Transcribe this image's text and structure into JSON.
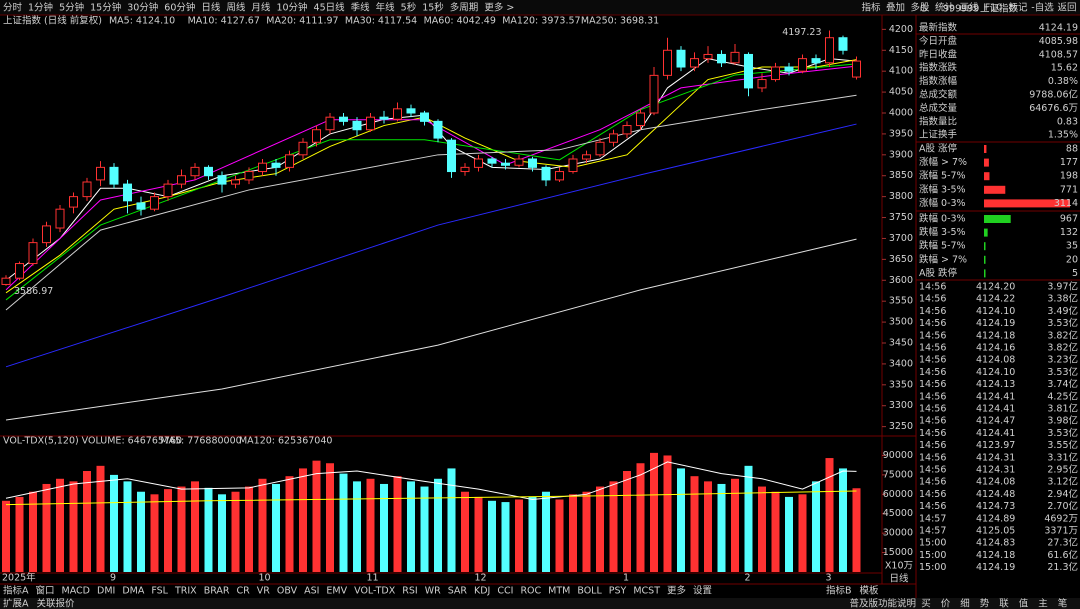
{
  "toolbar": {
    "periods": [
      "分时",
      "1分钟",
      "5分钟",
      "15分钟",
      "30分钟",
      "60分钟",
      "日线",
      "周线",
      "月线",
      "10分钟",
      "45日线",
      "季线",
      "年线",
      "5秒",
      "15秒",
      "多周期",
      "更多 >"
    ],
    "active": 6,
    "buttons": [
      "指标",
      "叠加",
      "多股",
      "统计",
      "画线",
      "F10",
      "标记",
      "-自选",
      "返回"
    ]
  },
  "chart_header": {
    "title": "上证指数 (日线 前复权)",
    "ma_legend": [
      {
        "label": "MA5: 4124.10",
        "color": "#ffffff"
      },
      {
        "label": "MA10: 4127.67",
        "color": "#ffff00"
      },
      {
        "label": "MA20: 4111.97",
        "color": "#ff00ff"
      },
      {
        "label": "MA30: 4117.54",
        "color": "#00e600"
      },
      {
        "label": "MA60: 4042.49",
        "color": "#d0d0d0"
      },
      {
        "label": "MA120: 3973.57",
        "color": "#3030ff"
      },
      {
        "label": "MA250: 3698.31",
        "color": "#e0e0e0"
      }
    ]
  },
  "price_chart": {
    "type": "candlestick",
    "ylim": [
      3230,
      4220
    ],
    "yticks": [
      3250,
      3300,
      3350,
      3400,
      3450,
      3500,
      3550,
      3600,
      3650,
      3700,
      3750,
      3800,
      3850,
      3900,
      3950,
      4000,
      4050,
      4100,
      4150,
      4200
    ],
    "up_color": "#ff3232",
    "down_color": "#54ffff",
    "candles": [
      [
        3590,
        3612,
        3586.97,
        3605
      ],
      [
        3605,
        3645,
        3600,
        3640
      ],
      [
        3640,
        3700,
        3635,
        3690
      ],
      [
        3690,
        3740,
        3680,
        3730
      ],
      [
        3725,
        3780,
        3715,
        3770
      ],
      [
        3775,
        3810,
        3760,
        3800
      ],
      [
        3800,
        3845,
        3790,
        3835
      ],
      [
        3840,
        3885,
        3825,
        3870
      ],
      [
        3870,
        3880,
        3820,
        3830
      ],
      [
        3830,
        3840,
        3760,
        3790
      ],
      [
        3785,
        3800,
        3755,
        3770
      ],
      [
        3770,
        3810,
        3765,
        3800
      ],
      [
        3800,
        3840,
        3790,
        3830
      ],
      [
        3830,
        3865,
        3820,
        3850
      ],
      [
        3850,
        3880,
        3840,
        3870
      ],
      [
        3870,
        3875,
        3840,
        3850
      ],
      [
        3850,
        3860,
        3810,
        3830
      ],
      [
        3830,
        3850,
        3820,
        3840
      ],
      [
        3840,
        3870,
        3830,
        3860
      ],
      [
        3860,
        3890,
        3850,
        3880
      ],
      [
        3880,
        3890,
        3850,
        3870
      ],
      [
        3870,
        3910,
        3860,
        3900
      ],
      [
        3900,
        3940,
        3890,
        3930
      ],
      [
        3930,
        3970,
        3920,
        3960
      ],
      [
        3960,
        4000,
        3950,
        3990
      ],
      [
        3990,
        4000,
        3970,
        3980
      ],
      [
        3980,
        3990,
        3945,
        3960
      ],
      [
        3960,
        4000,
        3955,
        3990
      ],
      [
        3990,
        4005,
        3975,
        3985
      ],
      [
        3985,
        4025,
        3980,
        4010
      ],
      [
        4010,
        4020,
        3990,
        4000
      ],
      [
        4000,
        4005,
        3970,
        3980
      ],
      [
        3980,
        3985,
        3930,
        3940
      ],
      [
        3935,
        3940,
        3845,
        3860
      ],
      [
        3860,
        3880,
        3850,
        3870
      ],
      [
        3870,
        3900,
        3860,
        3890
      ],
      [
        3890,
        3895,
        3870,
        3880
      ],
      [
        3880,
        3890,
        3865,
        3875
      ],
      [
        3875,
        3900,
        3870,
        3890
      ],
      [
        3890,
        3895,
        3860,
        3870
      ],
      [
        3870,
        3875,
        3825,
        3840
      ],
      [
        3840,
        3870,
        3835,
        3860
      ],
      [
        3860,
        3900,
        3855,
        3890
      ],
      [
        3890,
        3910,
        3880,
        3900
      ],
      [
        3900,
        3940,
        3895,
        3930
      ],
      [
        3930,
        3960,
        3920,
        3950
      ],
      [
        3950,
        3980,
        3940,
        3970
      ],
      [
        3970,
        4010,
        3960,
        4000
      ],
      [
        4000,
        4110,
        3995,
        4090
      ],
      [
        4090,
        4180,
        4080,
        4150
      ],
      [
        4150,
        4160,
        4100,
        4110
      ],
      [
        4110,
        4145,
        4100,
        4130
      ],
      [
        4130,
        4160,
        4120,
        4140
      ],
      [
        4140,
        4150,
        4110,
        4120
      ],
      [
        4120,
        4165,
        4115,
        4145
      ],
      [
        4140,
        4145,
        4040,
        4060
      ],
      [
        4060,
        4095,
        4050,
        4080
      ],
      [
        4080,
        4120,
        4075,
        4110
      ],
      [
        4110,
        4120,
        4090,
        4100
      ],
      [
        4100,
        4140,
        4095,
        4130
      ],
      [
        4130,
        4140,
        4105,
        4120
      ],
      [
        4120,
        4197.23,
        4110,
        4180
      ],
      [
        4180,
        4185,
        4140,
        4150
      ],
      [
        4085.98,
        4135,
        4080,
        4124.19
      ]
    ],
    "ma_lines": [
      {
        "color": "#ffffff",
        "x": [
          0,
          4,
          7,
          9,
          12,
          16,
          20,
          24,
          28,
          31,
          33,
          36,
          40,
          44,
          47,
          49,
          52,
          55,
          58,
          61,
          63
        ],
        "values": [
          3600,
          3700,
          3820,
          3820,
          3800,
          3850,
          3870,
          3950,
          3985,
          3995,
          3920,
          3870,
          3865,
          3890,
          3960,
          4060,
          4130,
          4110,
          4095,
          4130,
          4124.1
        ]
      },
      {
        "color": "#ffff00",
        "x": [
          0,
          4,
          8,
          12,
          16,
          20,
          24,
          28,
          31,
          34,
          38,
          42,
          46,
          49,
          52,
          56,
          60,
          63
        ],
        "values": [
          3570,
          3660,
          3770,
          3800,
          3835,
          3855,
          3920,
          3970,
          3990,
          3940,
          3885,
          3870,
          3900,
          3990,
          4080,
          4110,
          4110,
          4127.67
        ]
      },
      {
        "color": "#ff00ff",
        "x": [
          0,
          7,
          14,
          24,
          31,
          37,
          44,
          50,
          57,
          63
        ],
        "values": [
          3577,
          3792,
          3840,
          3984,
          3984,
          3876,
          3960,
          4060,
          4091,
          4111.97
        ]
      },
      {
        "color": "#00e600",
        "x": [
          0,
          7,
          14,
          24,
          31,
          41,
          47,
          54,
          63
        ],
        "values": [
          3553,
          3732,
          3816,
          3936,
          3936,
          3888,
          4008,
          4091,
          4117.54
        ]
      },
      {
        "color": "#d0d0d0",
        "x": [
          0,
          7,
          18,
          32,
          41,
          47,
          56,
          63
        ],
        "values": [
          3529,
          3720,
          3816,
          3900,
          3912,
          3960,
          4008,
          4042.49
        ]
      },
      {
        "color": "#2a2aff",
        "x": [
          0,
          16,
          32,
          47,
          63
        ],
        "values": [
          3393,
          3560,
          3732,
          3852,
          3973.57
        ]
      },
      {
        "color": "#e0e0e0",
        "x": [
          0,
          16,
          32,
          47,
          63
        ],
        "values": [
          3266,
          3340,
          3445,
          3577,
          3698.31
        ]
      }
    ],
    "dates": [
      "2025年",
      null,
      null,
      null,
      null,
      null,
      null,
      null,
      "9",
      null,
      null,
      null,
      null,
      null,
      null,
      null,
      null,
      null,
      null,
      "10",
      null,
      null,
      null,
      null,
      null,
      null,
      null,
      "11",
      null,
      null,
      null,
      null,
      null,
      null,
      null,
      "12",
      null,
      null,
      null,
      null,
      null,
      null,
      null,
      null,
      null,
      null,
      "1",
      null,
      null,
      null,
      null,
      null,
      null,
      null,
      null,
      "2",
      null,
      null,
      null,
      null,
      null,
      "3",
      null,
      null
    ]
  },
  "volume_chart": {
    "type": "bar",
    "legend": [
      {
        "label": "VOL-TDX(5,120)",
        "color": "#ffffff"
      },
      {
        "label": "VOLUME: 646765760",
        "color": "#ffffff"
      },
      {
        "label": "MA5: 776880000",
        "color": "#ffffff"
      },
      {
        "label": "MA120: 625367040",
        "color": "#ffff00"
      }
    ],
    "ylim": [
      0,
      95000
    ],
    "yticks": [
      15000,
      30000,
      45000,
      60000,
      75000,
      90000
    ],
    "unit_label": "X10万",
    "values": [
      55000,
      58000,
      62000,
      68000,
      72000,
      70000,
      78000,
      82000,
      75000,
      70000,
      62000,
      60000,
      64000,
      66000,
      70000,
      65000,
      60000,
      62000,
      66000,
      72000,
      68000,
      74000,
      80000,
      86000,
      84000,
      76000,
      70000,
      72000,
      68000,
      74000,
      70000,
      66000,
      72000,
      80000,
      62000,
      58000,
      55000,
      54000,
      56000,
      58000,
      62000,
      56000,
      60000,
      62000,
      66000,
      70000,
      78000,
      84000,
      92000,
      90000,
      80000,
      74000,
      70000,
      68000,
      72000,
      82000,
      66000,
      62000,
      58000,
      60000,
      70000,
      88000,
      80000,
      64677
    ],
    "ma_lines": [
      {
        "color": "#ffffff",
        "x": [
          0,
          5,
          9,
          13,
          18,
          23,
          26,
          31,
          35,
          39,
          43,
          47,
          49,
          53,
          56,
          59,
          62,
          63
        ],
        "values": [
          57000,
          68000,
          72000,
          64000,
          65000,
          76000,
          78000,
          70000,
          64000,
          56000,
          60000,
          75000,
          85000,
          76000,
          72000,
          64000,
          78000,
          77688
        ]
      },
      {
        "color": "#ffff00",
        "x": [
          0,
          15,
          30,
          45,
          63
        ],
        "values": [
          52000,
          55000,
          57000,
          59000,
          62537
        ]
      }
    ]
  },
  "period_label": "日线",
  "indicator_tabs": [
    "指标A",
    "窗口",
    "MACD",
    "DMI",
    "DMA",
    "FSL",
    "TRIX",
    "BRAR",
    "CR",
    "VR",
    "OBV",
    "ASI",
    "EMV",
    "VOL-TDX",
    "RSI",
    "WR",
    "SAR",
    "KDJ",
    "CCI",
    "ROC",
    "MTM",
    "BOLL",
    "PSY",
    "MCST",
    "更多",
    "设置"
  ],
  "active_indicator": 13,
  "right_tabs": [
    "指标B",
    "模板"
  ],
  "status": {
    "left": [
      "扩展A",
      "关联报价"
    ],
    "right": "普及版功能说明",
    "tabs": [
      "买",
      "价",
      "细",
      "势",
      "联",
      "值",
      "主",
      "笔"
    ]
  },
  "quote": {
    "prefix": "G",
    "code": "999999",
    "name": "上证指数",
    "rows": [
      {
        "label": "最新指数",
        "value": "4124.19",
        "color": "#ff4040"
      },
      {
        "label": "今日开盘",
        "value": "4085.98",
        "color": "#40ff40"
      },
      {
        "label": "昨日收盘",
        "value": "4108.57",
        "color": "#ffffff"
      },
      {
        "label": "指数涨跌",
        "value": "15.62",
        "color": "#ff4040"
      },
      {
        "label": "指数涨幅",
        "value": "0.38%",
        "color": "#ff4040"
      },
      {
        "label": "总成交额",
        "value": "9788.06亿",
        "color": "#ffff60"
      },
      {
        "label": "总成交量",
        "value": "64676.6万",
        "color": "#ffff60"
      },
      {
        "label": "指数量比",
        "value": "0.83",
        "color": "#40ff40"
      },
      {
        "label": "上证换手",
        "value": "1.35%",
        "color": "#ffffff"
      }
    ],
    "breadth": [
      {
        "label": "A股 涨停",
        "value": 88,
        "color": "#ff3232"
      },
      {
        "label": "涨幅 > 7%",
        "value": 177,
        "color": "#ff3232"
      },
      {
        "label": "涨幅 5-7%",
        "value": 198,
        "color": "#ff3232"
      },
      {
        "label": "涨幅 3-5%",
        "value": 771,
        "color": "#ff3232"
      },
      {
        "label": "涨幅 0-3%",
        "value": 3114,
        "color": "#ff3232"
      },
      {
        "label": "跌幅 0-3%",
        "value": 967,
        "color": "#20d020"
      },
      {
        "label": "跌幅 3-5%",
        "value": 132,
        "color": "#20d020"
      },
      {
        "label": "跌幅 5-7%",
        "value": 35,
        "color": "#20d020"
      },
      {
        "label": "跌幅 > 7%",
        "value": 20,
        "color": "#20d020"
      },
      {
        "label": "A股 跌停",
        "value": 5,
        "color": "#20d020"
      }
    ],
    "ticks": [
      [
        "14:56",
        "4124.20",
        "3.97亿"
      ],
      [
        "14:56",
        "4124.22",
        "3.38亿"
      ],
      [
        "14:56",
        "4124.10",
        "3.49亿"
      ],
      [
        "14:56",
        "4124.19",
        "3.53亿"
      ],
      [
        "14:56",
        "4124.18",
        "3.82亿"
      ],
      [
        "14:56",
        "4124.16",
        "3.82亿"
      ],
      [
        "14:56",
        "4124.08",
        "3.23亿"
      ],
      [
        "14:56",
        "4124.10",
        "3.53亿"
      ],
      [
        "14:56",
        "4124.13",
        "3.74亿"
      ],
      [
        "14:56",
        "4124.41",
        "4.25亿"
      ],
      [
        "14:56",
        "4124.41",
        "3.81亿"
      ],
      [
        "14:56",
        "4124.47",
        "3.98亿"
      ],
      [
        "14:56",
        "4124.41",
        "3.53亿"
      ],
      [
        "14:56",
        "4123.97",
        "3.55亿"
      ],
      [
        "14:56",
        "4124.31",
        "3.31亿"
      ],
      [
        "14:56",
        "4124.31",
        "2.95亿"
      ],
      [
        "14:56",
        "4124.08",
        "3.12亿"
      ],
      [
        "14:56",
        "4124.48",
        "2.94亿"
      ],
      [
        "14:56",
        "4124.73",
        "2.70亿"
      ],
      [
        "14:57",
        "4124.89",
        "4692万"
      ],
      [
        "14:57",
        "4125.05",
        "3371万"
      ],
      [
        "15:00",
        "4124.83",
        "27.3亿"
      ],
      [
        "15:00",
        "4124.18",
        "61.6亿"
      ],
      [
        "15:00",
        "4124.19",
        "21.3亿"
      ]
    ]
  }
}
